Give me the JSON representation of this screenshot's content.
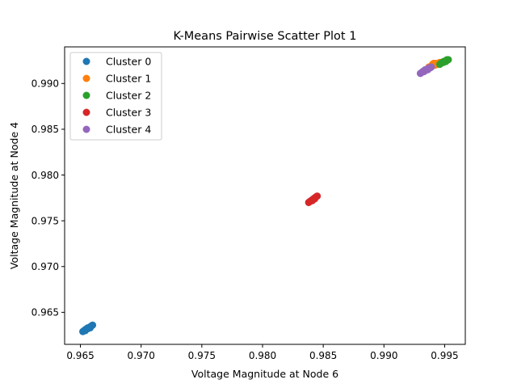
{
  "chart_data": {
    "type": "scatter",
    "title": "K-Means Pairwise Scatter Plot 1",
    "xlabel": "Voltage Magnitude at Node 6",
    "ylabel": "Voltage Magnitude at Node 4",
    "xlim": [
      0.9637,
      0.9967
    ],
    "ylim": [
      0.9615,
      0.994
    ],
    "xticks": [
      0.965,
      0.97,
      0.975,
      0.98,
      0.985,
      0.99,
      0.995
    ],
    "xtick_labels": [
      "0.965",
      "0.970",
      "0.975",
      "0.980",
      "0.985",
      "0.990",
      "0.995"
    ],
    "yticks": [
      0.965,
      0.97,
      0.975,
      0.98,
      0.985,
      0.99
    ],
    "ytick_labels": [
      "0.965",
      "0.970",
      "0.975",
      "0.980",
      "0.985",
      "0.990"
    ],
    "grid": false,
    "legend_position": "upper-left",
    "series": [
      {
        "name": "Cluster 0",
        "color": "#1f77b4",
        "points": [
          [
            0.9652,
            0.9629
          ],
          [
            0.9653,
            0.963
          ],
          [
            0.9654,
            0.9631
          ],
          [
            0.9655,
            0.9632
          ],
          [
            0.9656,
            0.9632
          ],
          [
            0.9657,
            0.9633
          ],
          [
            0.9658,
            0.9634
          ],
          [
            0.9659,
            0.9635
          ],
          [
            0.966,
            0.9636
          ],
          [
            0.9654,
            0.963
          ],
          [
            0.9656,
            0.9633
          ],
          [
            0.9658,
            0.9633
          ]
        ]
      },
      {
        "name": "Cluster 1",
        "color": "#ff7f0e",
        "points": [
          [
            0.9937,
            0.9918
          ],
          [
            0.9939,
            0.9919
          ],
          [
            0.994,
            0.9921
          ],
          [
            0.9941,
            0.9922
          ],
          [
            0.9943,
            0.9922
          ],
          [
            0.9945,
            0.9921
          ],
          [
            0.9942,
            0.992
          ],
          [
            0.9946,
            0.9923
          ]
        ]
      },
      {
        "name": "Cluster 2",
        "color": "#2ca02c",
        "points": [
          [
            0.9946,
            0.9921
          ],
          [
            0.9947,
            0.9922
          ],
          [
            0.9948,
            0.9923
          ],
          [
            0.9949,
            0.9923
          ],
          [
            0.995,
            0.9924
          ],
          [
            0.9951,
            0.9925
          ],
          [
            0.9952,
            0.9926
          ],
          [
            0.9953,
            0.9926
          ],
          [
            0.9949,
            0.9924
          ],
          [
            0.9951,
            0.9924
          ]
        ]
      },
      {
        "name": "Cluster 3",
        "color": "#d62728",
        "points": [
          [
            0.9838,
            0.977
          ],
          [
            0.9839,
            0.9771
          ],
          [
            0.984,
            0.9772
          ],
          [
            0.9841,
            0.9773
          ],
          [
            0.9842,
            0.9774
          ],
          [
            0.9843,
            0.9775
          ],
          [
            0.9844,
            0.9776
          ],
          [
            0.9845,
            0.9777
          ],
          [
            0.9841,
            0.9772
          ],
          [
            0.9843,
            0.9774
          ]
        ]
      },
      {
        "name": "Cluster 4",
        "color": "#9467bd",
        "points": [
          [
            0.993,
            0.9911
          ],
          [
            0.9931,
            0.9912
          ],
          [
            0.9932,
            0.9913
          ],
          [
            0.9933,
            0.9914
          ],
          [
            0.9934,
            0.9915
          ],
          [
            0.9935,
            0.9915
          ],
          [
            0.9936,
            0.9916
          ],
          [
            0.9937,
            0.9917
          ],
          [
            0.9938,
            0.9917
          ],
          [
            0.9939,
            0.9918
          ],
          [
            0.9933,
            0.9913
          ],
          [
            0.9936,
            0.9915
          ]
        ]
      }
    ]
  }
}
